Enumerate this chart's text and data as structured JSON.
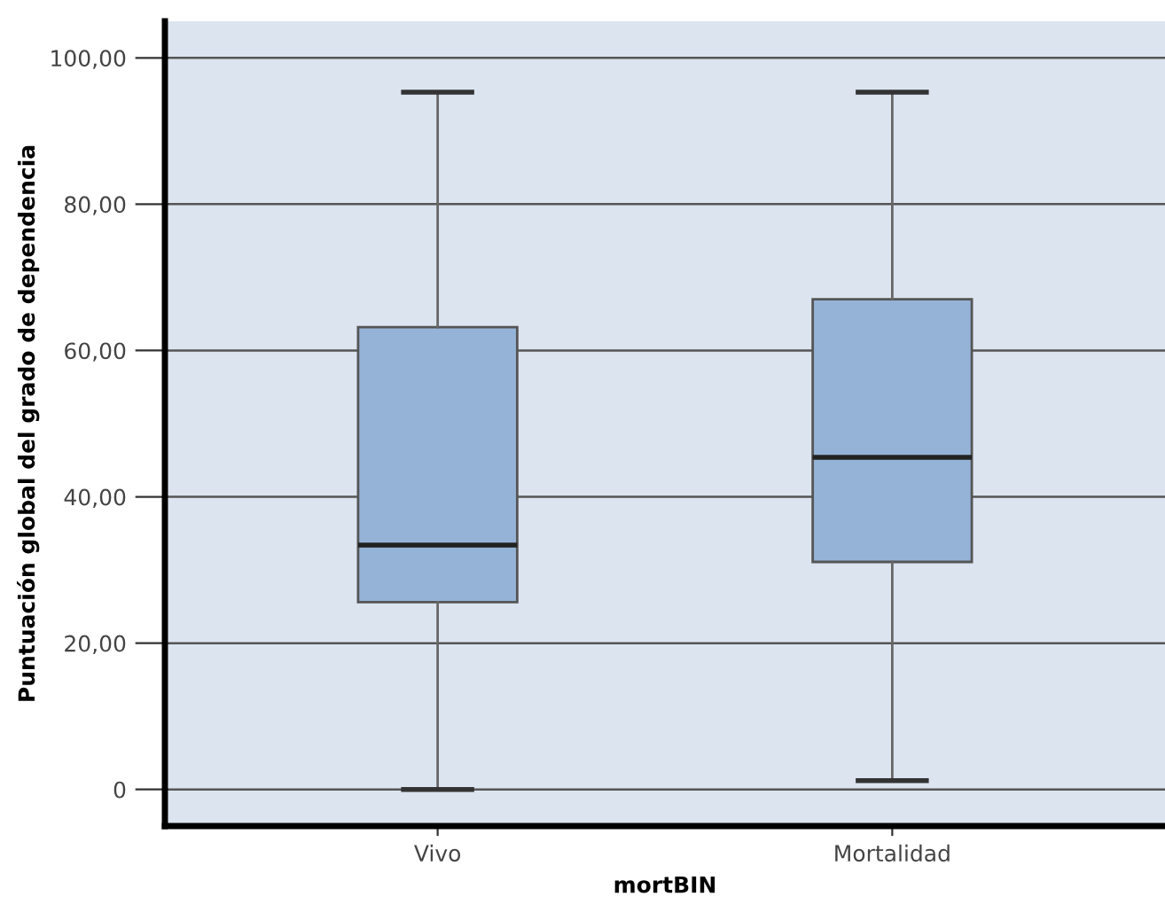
{
  "chart_data": {
    "type": "box",
    "xlabel": "mortBIN",
    "ylabel": "Puntuación global del grado de dependencia",
    "categories": [
      "Vivo",
      "Mortalidad"
    ],
    "boxes": [
      {
        "low": 0,
        "q1": 25.6,
        "median": 33.4,
        "q3": 63.2,
        "high": 95.3
      },
      {
        "low": 1.2,
        "q1": 31.1,
        "median": 45.4,
        "q3": 67.0,
        "high": 95.3
      }
    ],
    "color": "#95b3d7",
    "ylim": [
      -5,
      105
    ],
    "yticks": [
      {
        "value": 0,
        "label": "0"
      },
      {
        "value": 20,
        "label": "20,00"
      },
      {
        "value": 40,
        "label": "40,00"
      },
      {
        "value": 60,
        "label": "60,00"
      },
      {
        "value": 80,
        "label": "80,00"
      },
      {
        "value": 100,
        "label": "100,00"
      }
    ],
    "grid": "y"
  }
}
